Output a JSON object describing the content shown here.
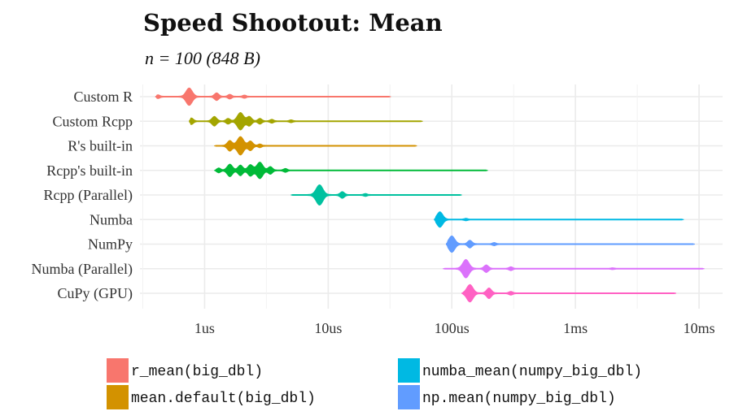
{
  "chart_data": {
    "type": "violin",
    "title": "Speed Shootout: Mean",
    "subtitle": "n = 100 (848 B)",
    "xscale": "log",
    "xlim_seconds": [
      3e-07,
      0.0155
    ],
    "xticks": [
      {
        "value": 1e-06,
        "label": "1us"
      },
      {
        "value": 1e-05,
        "label": "10us"
      },
      {
        "value": 0.0001,
        "label": "100us"
      },
      {
        "value": 0.001,
        "label": "1ms"
      },
      {
        "value": 0.01,
        "label": "10ms"
      }
    ],
    "grid": true,
    "legend_position": "bottom",
    "categories": [
      "Custom R",
      "Custom Rcpp",
      "R's built-in",
      "Rcpp's built-in",
      "Rcpp (Parallel)",
      "Numba",
      "NumPy",
      "Numba (Parallel)",
      "CuPy (GPU)"
    ],
    "series": [
      {
        "category": "Custom R",
        "color": "#F8766D",
        "min": 4e-07,
        "max": 3.2e-05,
        "peaks": [
          [
            4.2e-07,
            0.15
          ],
          [
            7.5e-07,
            0.85
          ],
          [
            1.25e-06,
            0.35
          ],
          [
            1.6e-06,
            0.2
          ],
          [
            2.1e-06,
            0.12
          ]
        ]
      },
      {
        "category": "Custom Rcpp",
        "color": "#A3A500",
        "min": 7.5e-07,
        "max": 5.8e-05,
        "peaks": [
          [
            7.8e-07,
            0.3
          ],
          [
            1.2e-06,
            0.45
          ],
          [
            1.55e-06,
            0.25
          ],
          [
            1.95e-06,
            0.85
          ],
          [
            2.3e-06,
            0.45
          ],
          [
            2.8e-06,
            0.25
          ],
          [
            3.5e-06,
            0.15
          ],
          [
            5e-06,
            0.1
          ]
        ]
      },
      {
        "category": "R's built-in",
        "color": "#D39200",
        "min": 1.2e-06,
        "max": 5.2e-05,
        "peaks": [
          [
            1.6e-06,
            0.5
          ],
          [
            1.95e-06,
            0.9
          ],
          [
            2.35e-06,
            0.45
          ],
          [
            2.8e-06,
            0.15
          ]
        ]
      },
      {
        "category": "Rcpp's built-in",
        "color": "#00BA38",
        "min": 1.2e-06,
        "max": 0.000195,
        "peaks": [
          [
            1.3e-06,
            0.2
          ],
          [
            1.6e-06,
            0.6
          ],
          [
            1.95e-06,
            0.5
          ],
          [
            2.35e-06,
            0.55
          ],
          [
            2.8e-06,
            0.8
          ],
          [
            3.4e-06,
            0.35
          ],
          [
            4.5e-06,
            0.15
          ]
        ]
      },
      {
        "category": "Rcpp (Parallel)",
        "color": "#00C19F",
        "min": 5e-06,
        "max": 0.00012,
        "peaks": [
          [
            8.5e-06,
            1.0
          ],
          [
            1.3e-05,
            0.3
          ],
          [
            2e-05,
            0.1
          ]
        ]
      },
      {
        "category": "Numba",
        "color": "#00B9E3",
        "min": 7.2e-05,
        "max": 0.0075,
        "peaks": [
          [
            8e-05,
            0.75
          ],
          [
            0.00013,
            0.08
          ]
        ]
      },
      {
        "category": "NumPy",
        "color": "#619CFF",
        "min": 9e-05,
        "max": 0.0092,
        "peaks": [
          [
            0.0001,
            0.8
          ],
          [
            0.00014,
            0.35
          ],
          [
            0.00022,
            0.12
          ]
        ]
      },
      {
        "category": "Numba (Parallel)",
        "color": "#DB72FB",
        "min": 8.5e-05,
        "max": 0.011,
        "peaks": [
          [
            0.00013,
            0.9
          ],
          [
            0.00019,
            0.35
          ],
          [
            0.0003,
            0.15
          ],
          [
            0.002,
            0.05
          ]
        ]
      },
      {
        "category": "CuPy (GPU)",
        "color": "#FF61C3",
        "min": 0.00012,
        "max": 0.0065,
        "peaks": [
          [
            0.00014,
            0.85
          ],
          [
            0.0002,
            0.5
          ],
          [
            0.0003,
            0.15
          ]
        ]
      }
    ],
    "legend": [
      {
        "label": "r_mean(big_dbl)",
        "color": "#F8766D"
      },
      {
        "label": "numba_mean(numpy_big_dbl)",
        "color": "#00B9E3"
      },
      {
        "label": "mean.default(big_dbl)",
        "color": "#D39200"
      },
      {
        "label": "np.mean(numpy_big_dbl)",
        "color": "#619CFF"
      }
    ]
  }
}
